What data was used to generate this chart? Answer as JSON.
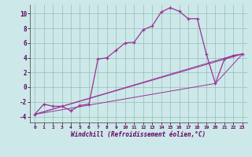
{
  "xlabel": "Windchill (Refroidissement éolien,°C)",
  "bg_color": "#cce8e8",
  "line_color": "#993399",
  "xlim": [
    -0.5,
    23.5
  ],
  "ylim": [
    -4.8,
    11.2
  ],
  "xticks": [
    0,
    1,
    2,
    3,
    4,
    5,
    6,
    7,
    8,
    9,
    10,
    11,
    12,
    13,
    14,
    15,
    16,
    17,
    18,
    19,
    20,
    21,
    22,
    23
  ],
  "yticks": [
    -4,
    -2,
    0,
    2,
    4,
    6,
    8,
    10
  ],
  "series": [
    [
      0,
      -3.7
    ],
    [
      1,
      -2.3
    ],
    [
      2,
      -2.6
    ],
    [
      3,
      -2.6
    ],
    [
      4,
      -3.2
    ],
    [
      5,
      -2.5
    ],
    [
      6,
      -2.3
    ],
    [
      7,
      3.8
    ],
    [
      8,
      4.0
    ],
    [
      9,
      5.0
    ],
    [
      10,
      6.0
    ],
    [
      11,
      6.1
    ],
    [
      12,
      7.8
    ],
    [
      13,
      8.3
    ],
    [
      14,
      10.2
    ],
    [
      15,
      10.8
    ],
    [
      16,
      10.3
    ],
    [
      17,
      9.3
    ],
    [
      18,
      9.3
    ],
    [
      19,
      4.5
    ],
    [
      20,
      0.5
    ],
    [
      21,
      3.8
    ],
    [
      22,
      4.3
    ],
    [
      23,
      4.5
    ]
  ],
  "line2": [
    [
      0,
      -3.7
    ],
    [
      23,
      4.5
    ]
  ],
  "line3": [
    [
      0,
      -3.7
    ],
    [
      20,
      0.5
    ],
    [
      23,
      4.5
    ]
  ],
  "line4": [
    [
      0,
      -3.7
    ],
    [
      22,
      4.3
    ],
    [
      23,
      4.5
    ]
  ]
}
